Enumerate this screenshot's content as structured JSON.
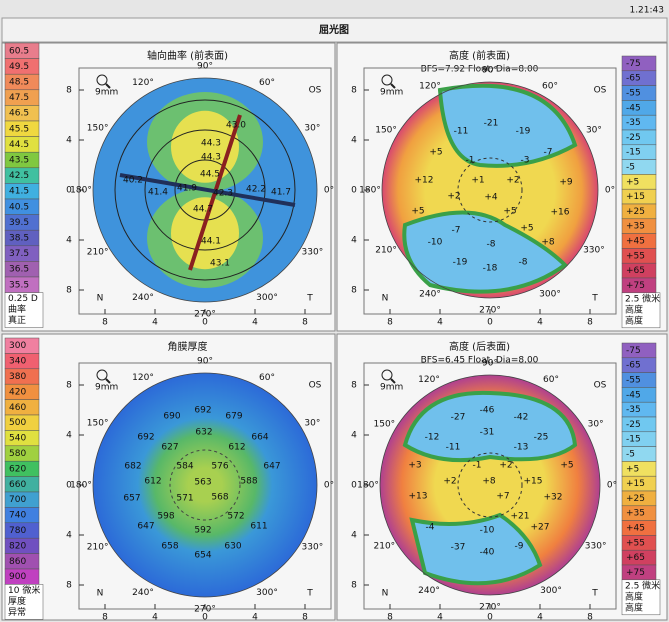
{
  "header": {
    "title": "屈光图",
    "time": "1.21:43"
  },
  "axes": {
    "angles": [
      "90°",
      "60°",
      "30°",
      "0°",
      "330°",
      "300°",
      "270°",
      "240°",
      "210°",
      "180°",
      "150°",
      "120°"
    ],
    "ticks": [
      "8",
      "4",
      "0",
      "4",
      "8"
    ],
    "zoom": "9mm",
    "eye": "OS",
    "nasal": "N",
    "temporal": "T"
  },
  "panels": [
    {
      "title": "轴向曲率 (前表面)",
      "scale": [
        {
          "label": "60.5",
          "color": "#e87d8c"
        },
        {
          "label": "49.5",
          "color": "#f07070"
        },
        {
          "label": "48.5",
          "color": "#f08a5a"
        },
        {
          "label": "47.5",
          "color": "#f0a050"
        },
        {
          "label": "46.5",
          "color": "#f0c050"
        },
        {
          "label": "45.5",
          "color": "#f0d840"
        },
        {
          "label": "44.5",
          "color": "#e0e040"
        },
        {
          "label": "43.5",
          "color": "#80c840"
        },
        {
          "label": "42.5",
          "color": "#40c0a0"
        },
        {
          "label": "41.5",
          "color": "#40b0e0"
        },
        {
          "label": "40.5",
          "color": "#4090e0"
        },
        {
          "label": "39.5",
          "color": "#5070d0"
        },
        {
          "label": "38.5",
          "color": "#6060c0"
        },
        {
          "label": "37.5",
          "color": "#8060c0"
        },
        {
          "label": "36.5",
          "color": "#a060b0"
        },
        {
          "label": "35.5",
          "color": "#c070c0"
        }
      ],
      "footer": [
        "0.25 D",
        "曲率",
        "真正"
      ],
      "values": [
        "43.0",
        "44.3",
        "44.3",
        "44.5",
        "40.2",
        "41.4",
        "41.9",
        "42.3",
        "42.2",
        "41.7",
        "44.7",
        "44.1",
        "43.1"
      ]
    },
    {
      "title": "高度 (前表面)",
      "subtitle": "BFS=7.92 Float, Dia=8.00",
      "scale": [
        {
          "label": "-75",
          "color": "#9060c0"
        },
        {
          "label": "-65",
          "color": "#7070d0"
        },
        {
          "label": "-55",
          "color": "#5090e0"
        },
        {
          "label": "-45",
          "color": "#50a8e8"
        },
        {
          "label": "-35",
          "color": "#60b8f0"
        },
        {
          "label": "-25",
          "color": "#70c8f0"
        },
        {
          "label": "-15",
          "color": "#80d0f0"
        },
        {
          "label": "-5",
          "color": "#90d8f0"
        },
        {
          "label": "+5",
          "color": "#f0e060"
        },
        {
          "label": "+15",
          "color": "#f0d050"
        },
        {
          "label": "+25",
          "color": "#f0b040"
        },
        {
          "label": "+35",
          "color": "#f09040"
        },
        {
          "label": "+45",
          "color": "#f07040"
        },
        {
          "label": "+55",
          "color": "#e05050"
        },
        {
          "label": "+65",
          "color": "#d04060"
        },
        {
          "label": "+75",
          "color": "#c04080"
        }
      ],
      "footer": [
        "2.5 微米",
        "高度",
        "高度"
      ],
      "values": [
        "-21",
        "-11",
        "-19",
        "+5",
        "-1",
        "-3",
        "-7",
        "+12",
        "+1",
        "+2",
        "+9",
        "+2",
        "+4",
        "+5",
        "+5",
        "+16",
        "-7",
        "+5",
        "-10",
        "-8",
        "+8",
        "-19",
        "-18",
        "-8"
      ]
    },
    {
      "title": "角膜厚度",
      "scale": [
        {
          "label": "300",
          "color": "#f080a0"
        },
        {
          "label": "340",
          "color": "#f06070"
        },
        {
          "label": "380",
          "color": "#f07050"
        },
        {
          "label": "420",
          "color": "#f09040"
        },
        {
          "label": "460",
          "color": "#f0b040"
        },
        {
          "label": "500",
          "color": "#f0d040"
        },
        {
          "label": "540",
          "color": "#e0e040"
        },
        {
          "label": "580",
          "color": "#a0d040"
        },
        {
          "label": "620",
          "color": "#40c060"
        },
        {
          "label": "660",
          "color": "#40b0a0"
        },
        {
          "label": "700",
          "color": "#40a0d0"
        },
        {
          "label": "740",
          "color": "#4080e0"
        },
        {
          "label": "780",
          "color": "#5060d0"
        },
        {
          "label": "820",
          "color": "#7050c0"
        },
        {
          "label": "860",
          "color": "#a050b0"
        },
        {
          "label": "900",
          "color": "#c040c0"
        }
      ],
      "footer": [
        "10 微米",
        "厚度",
        "异常"
      ],
      "values": [
        "692",
        "690",
        "679",
        "692",
        "632",
        "664",
        "627",
        "612",
        "682",
        "584",
        "576",
        "647",
        "612",
        "563",
        "588",
        "657",
        "571",
        "568",
        "598",
        "572",
        "611",
        "647",
        "592",
        "658",
        "630",
        "654"
      ]
    },
    {
      "title": "高度 (后表面)",
      "subtitle": "BFS=6.45 Float, Dia=8.00",
      "scale": [
        {
          "label": "-75",
          "color": "#9060c0"
        },
        {
          "label": "-65",
          "color": "#7070d0"
        },
        {
          "label": "-55",
          "color": "#5090e0"
        },
        {
          "label": "-45",
          "color": "#50a8e8"
        },
        {
          "label": "-35",
          "color": "#60b8f0"
        },
        {
          "label": "-25",
          "color": "#70c8f0"
        },
        {
          "label": "-15",
          "color": "#80d0f0"
        },
        {
          "label": "-5",
          "color": "#90d8f0"
        },
        {
          "label": "+5",
          "color": "#f0e060"
        },
        {
          "label": "+15",
          "color": "#f0d050"
        },
        {
          "label": "+25",
          "color": "#f0b040"
        },
        {
          "label": "+35",
          "color": "#f09040"
        },
        {
          "label": "+45",
          "color": "#f07040"
        },
        {
          "label": "+55",
          "color": "#e05050"
        },
        {
          "label": "+65",
          "color": "#d04060"
        },
        {
          "label": "+75",
          "color": "#c04080"
        }
      ],
      "footer": [
        "2.5 微米",
        "高度",
        "高度"
      ],
      "values": [
        "-27",
        "-46",
        "-42",
        "-12",
        "-31",
        "-25",
        "-11",
        "-13",
        "+3",
        "-1",
        "+2",
        "+5",
        "+13",
        "+2",
        "+8",
        "+7",
        "+15",
        "+32",
        "-4",
        "+21",
        "+27",
        "-10",
        "-37",
        "-40",
        "-9"
      ]
    }
  ]
}
